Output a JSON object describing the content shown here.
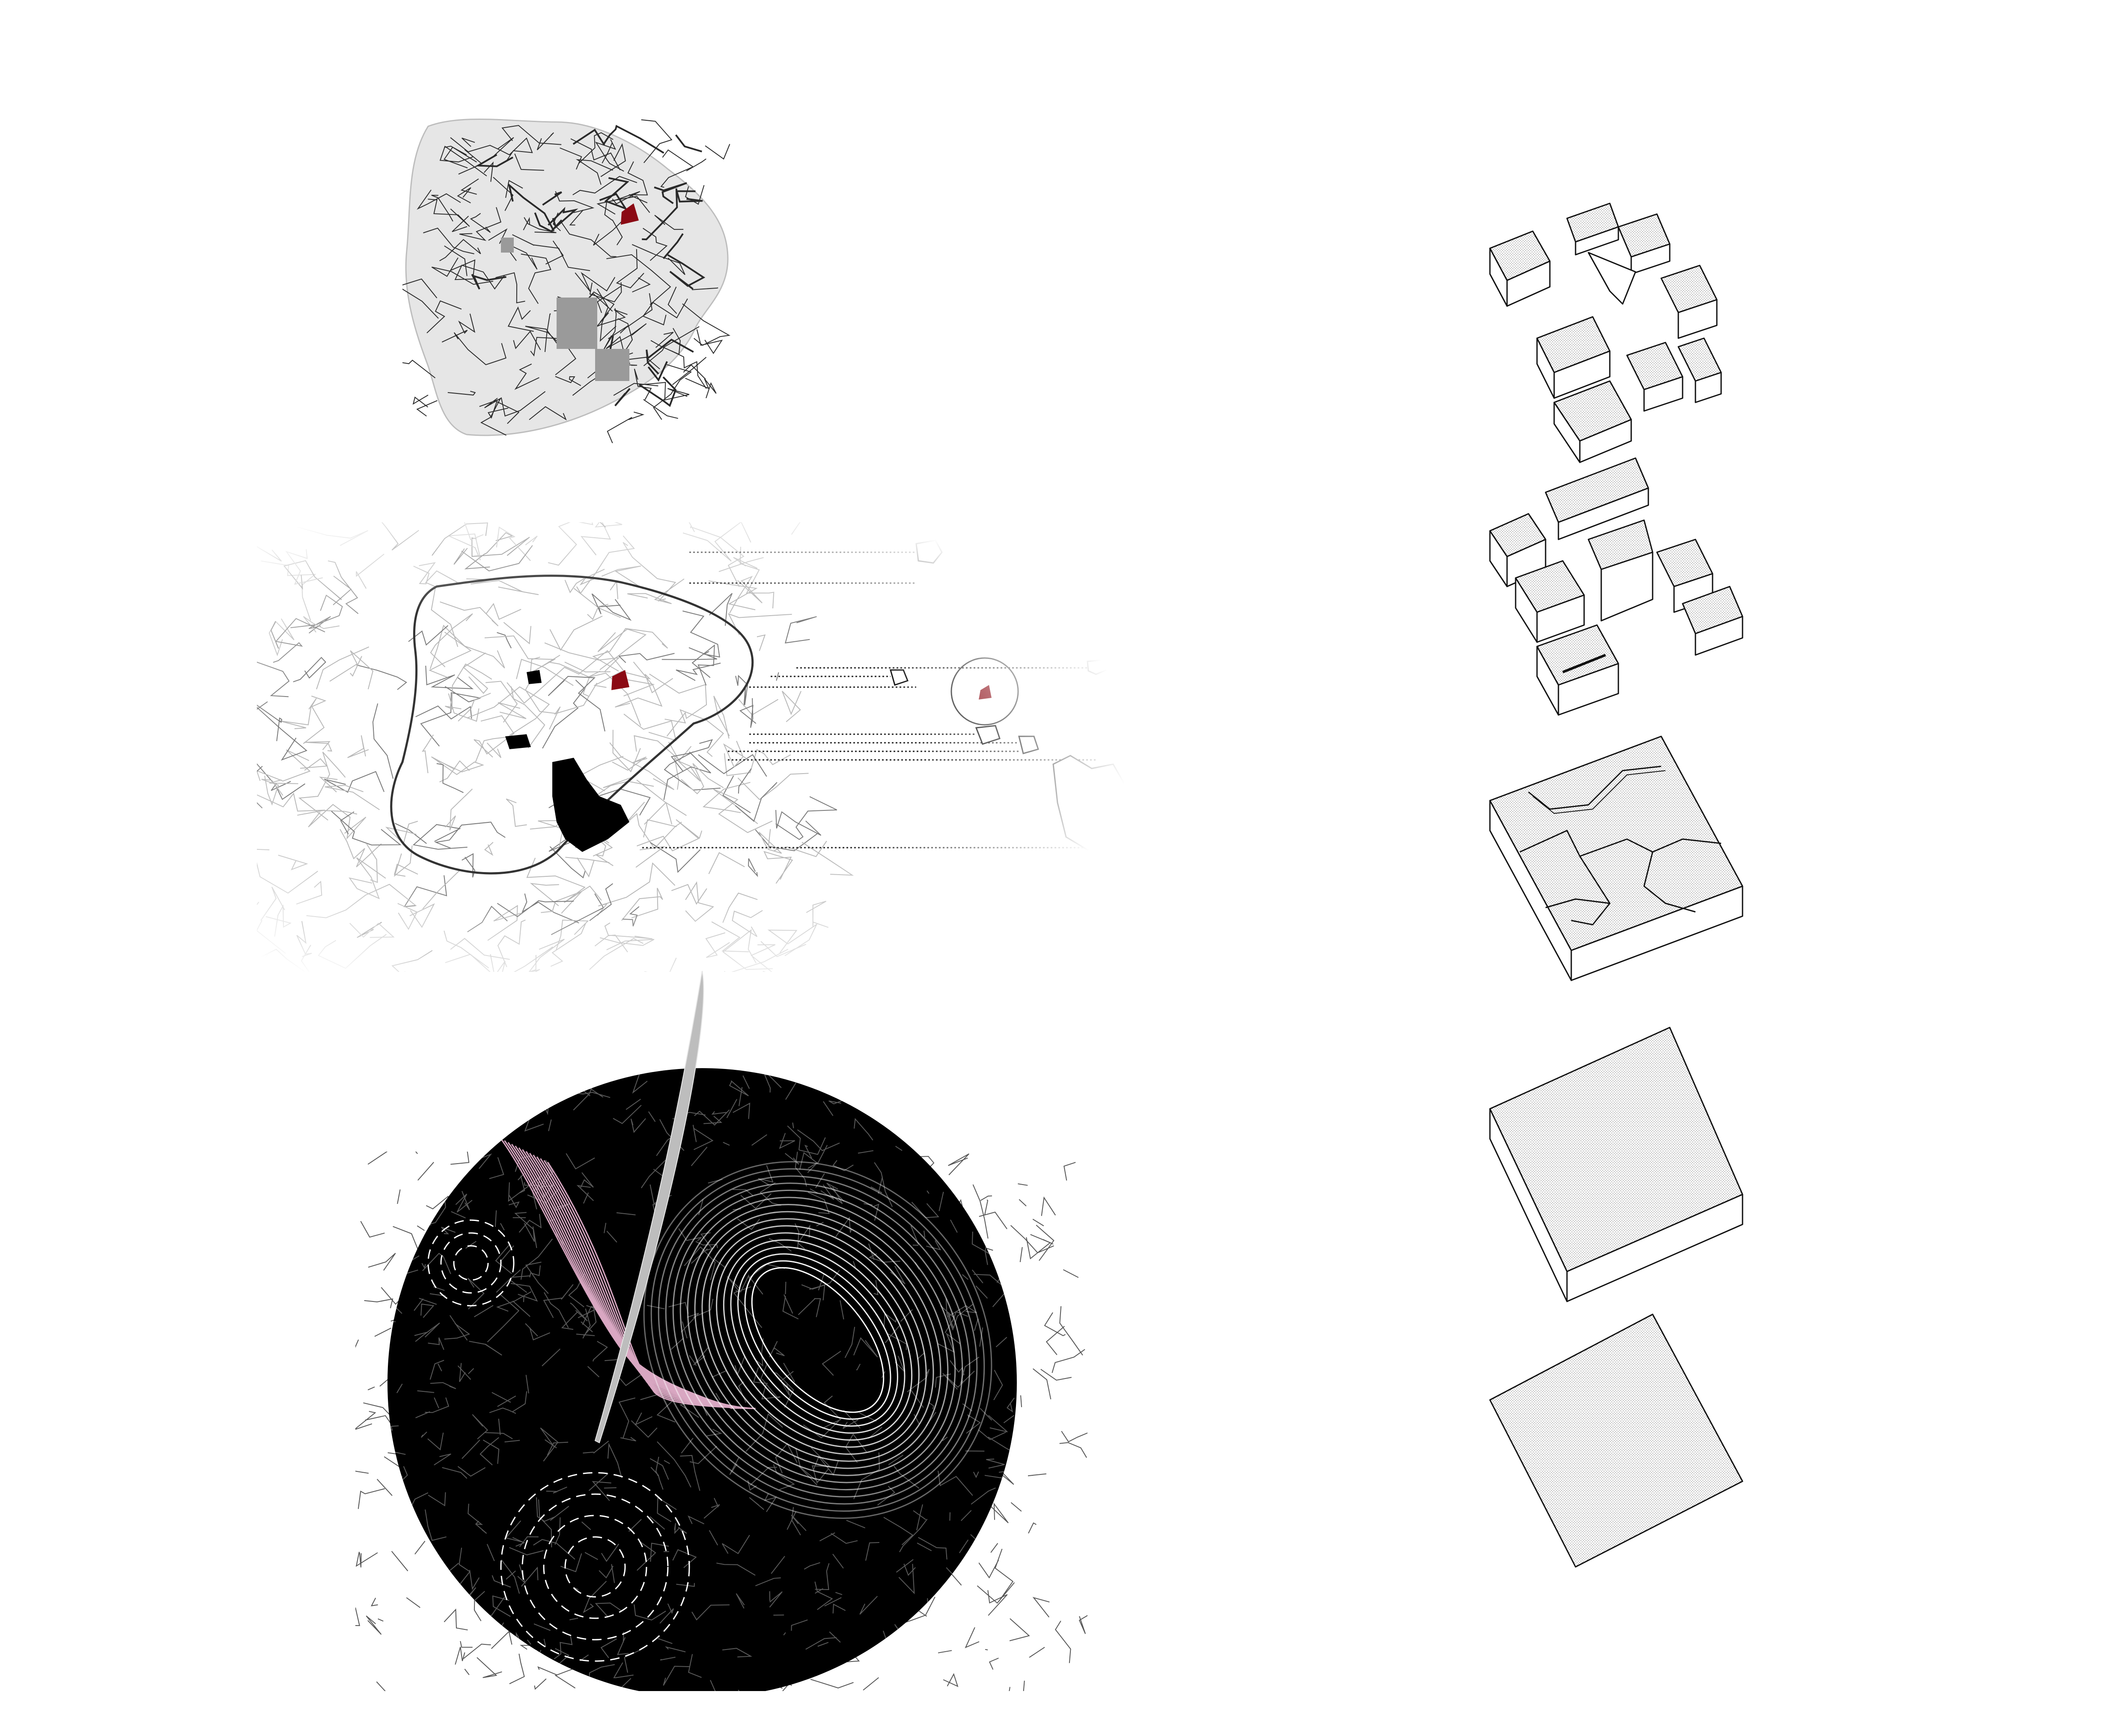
{
  "colors": {
    "background": "#ffffff",
    "map_fill": "#e6e6e6",
    "road": "#2a2a2a",
    "site_highlight": "#8b0a14",
    "green_area": "#9a9a9a",
    "analysis_disc": "#000000",
    "contour_pink": "#d9a7c2",
    "contour_white": "#ffffff",
    "block_hatch": "#c8c8c8"
  },
  "panels": {
    "city_map": {
      "description_icon": "city-road-map"
    },
    "extraction_map": {
      "description_icon": "map-with-extracted-fragments"
    },
    "analysis_map": {
      "description_icon": "circular-contour-analysis"
    },
    "block_sequence": {
      "steps": [
        {
          "id": "fragmented-block"
        },
        {
          "id": "split-block"
        },
        {
          "id": "carved-block"
        },
        {
          "id": "solid-block"
        },
        {
          "id": "flat-plot"
        }
      ]
    }
  }
}
